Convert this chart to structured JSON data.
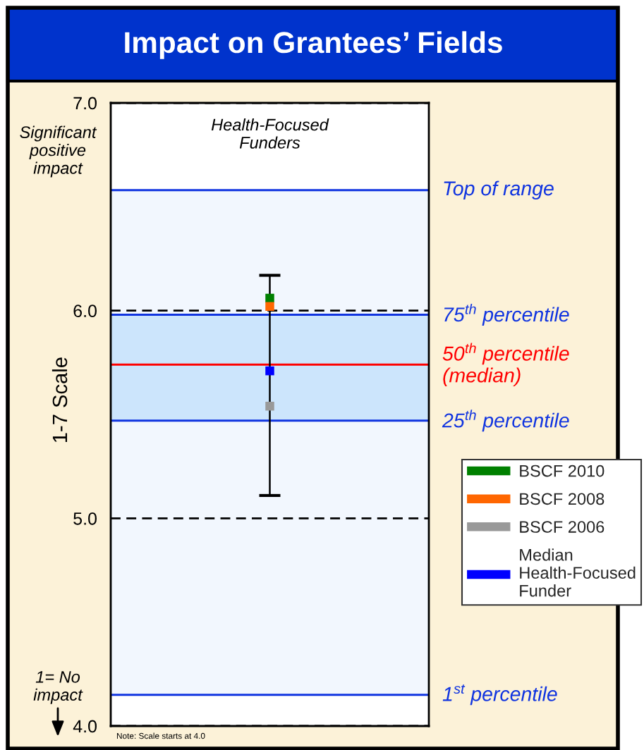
{
  "chart_data": {
    "type": "scatter",
    "title": "Impact on Grantees’ Fields",
    "ylabel": "1-7 Scale",
    "categories": [
      "Health-Focused\nFunders"
    ],
    "series": [
      {
        "name": "BSCF 2010",
        "color": "#008000",
        "values": [
          6.06
        ]
      },
      {
        "name": "BSCF 2008",
        "color": "#ff6600",
        "values": [
          6.02
        ]
      },
      {
        "name": "BSCF 2006",
        "color": "#999999",
        "values": [
          5.54
        ]
      },
      {
        "name": "Median\nHealth-Focused\nFunder",
        "color": "#0000ff",
        "values": [
          5.71
        ],
        "errors": [
          [
            5.11,
            6.17
          ]
        ]
      }
    ],
    "ylim": [
      4,
      7
    ],
    "yticks": [
      {
        "value": 4,
        "label": "4.0"
      },
      {
        "value": 5,
        "label": "5.0"
      },
      {
        "value": 6,
        "label": "6.0"
      },
      {
        "value": 7,
        "label": "7.0"
      }
    ],
    "grid": "y",
    "marker": "square",
    "legend": "right",
    "bands": [
      {
        "axis": "y",
        "from": 4.15,
        "to": 6.58,
        "color": "#f2f7fe"
      },
      {
        "axis": "y",
        "from": 5.47,
        "to": 5.98,
        "color": "#cce5fc"
      }
    ],
    "ref_lines": [
      {
        "axis": "y",
        "value": 6.58,
        "label": "Top of range",
        "color": "#1034e0"
      },
      {
        "axis": "y",
        "value": 5.98,
        "label": "75$^{th}$ percentile",
        "color": "#1034e0"
      },
      {
        "axis": "y",
        "value": 5.74,
        "label": "50$^{th}$ percentile\n(median)",
        "color": "#ff0000"
      },
      {
        "axis": "y",
        "value": 5.47,
        "label": "25$^{th}$ percentile",
        "color": "#1034e0"
      },
      {
        "axis": "y",
        "value": 4.15,
        "label": "1$^{st}$ percentile",
        "color": "#1034e0"
      }
    ],
    "annotations": [
      "Significant\npositive\nimpact",
      "1= No\nimpact",
      "Note: Scale starts at 4.0"
    ]
  }
}
